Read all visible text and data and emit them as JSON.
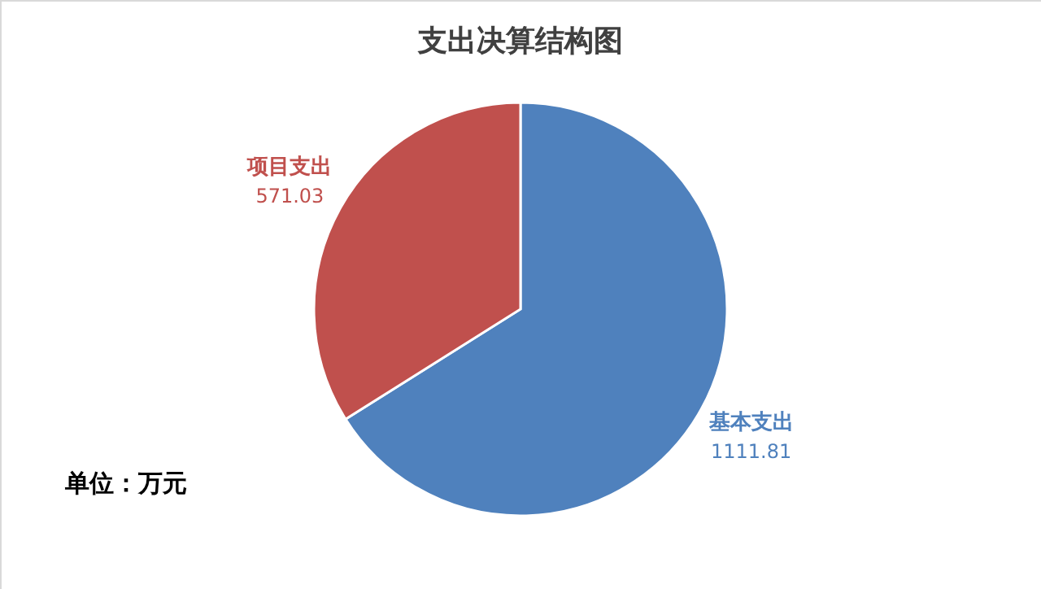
{
  "chart_data": {
    "type": "pie",
    "title": "支出决算结构图",
    "categories": [
      "基本支出",
      "项目支出"
    ],
    "values": [
      1111.81,
      571.03
    ],
    "colors": [
      "#4f81bd",
      "#c0504d"
    ],
    "data_labels": true,
    "legend": false,
    "annotations": [
      "单位：万元"
    ]
  }
}
